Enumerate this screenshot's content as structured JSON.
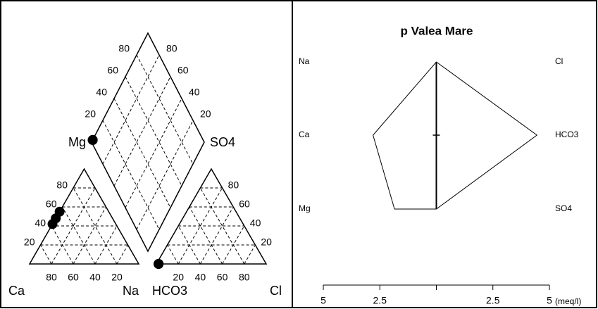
{
  "chart_data": [
    {
      "type": "piper",
      "labels": {
        "mg": "Mg",
        "so4": "SO4",
        "ca": "Ca",
        "na": "Na",
        "hco3": "HCO3",
        "cl": "Cl"
      },
      "ticks": [
        20,
        40,
        60,
        80
      ],
      "color": "#000000",
      "samples": [
        {
          "mg": 55,
          "na": 0,
          "cl": 2,
          "so4": 0
        },
        {
          "mg": 48,
          "na": 0,
          "cl": 2,
          "so4": 0
        },
        {
          "mg": 42,
          "na": 0,
          "cl": 2,
          "so4": 0
        }
      ]
    },
    {
      "type": "stiff",
      "title": "p Valea Mare",
      "cations": [
        "Na",
        "Ca",
        "Mg"
      ],
      "anions": [
        "Cl",
        "HCO3",
        "SO4"
      ],
      "cation_values": [
        0,
        2.8,
        1.85
      ],
      "anion_values": [
        0,
        4.45,
        0
      ],
      "xlim": [
        -5,
        5
      ],
      "xticks": [
        {
          "value": -5,
          "label": "5"
        },
        {
          "value": -2.5,
          "label": "2.5"
        },
        {
          "value": 0,
          "label": null
        },
        2.5,
        5
      ],
      "xlabel": "(meq/l)"
    }
  ]
}
